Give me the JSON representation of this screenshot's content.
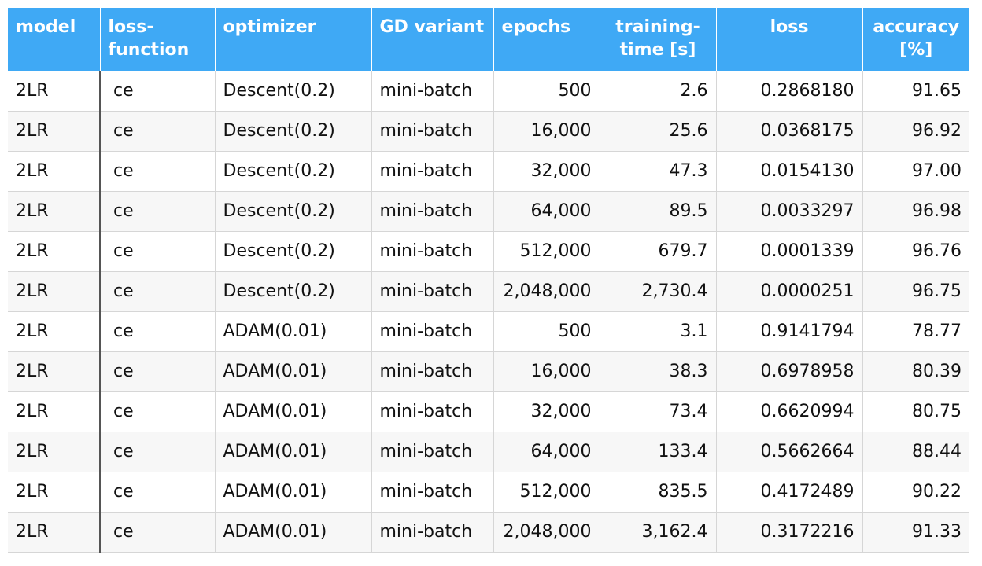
{
  "table": {
    "headers": [
      "model",
      "loss-\nfunction",
      "optimizer",
      "GD variant",
      "epochs",
      "training-\ntime [s]",
      "loss",
      "accuracy\n[%]"
    ],
    "rows": [
      [
        "2LR",
        "ce",
        "Descent(0.2)",
        "mini-batch",
        "500",
        "2.6",
        "0.2868180",
        "91.65"
      ],
      [
        "2LR",
        "ce",
        "Descent(0.2)",
        "mini-batch",
        "16,000",
        "25.6",
        "0.0368175",
        "96.92"
      ],
      [
        "2LR",
        "ce",
        "Descent(0.2)",
        "mini-batch",
        "32,000",
        "47.3",
        "0.0154130",
        "97.00"
      ],
      [
        "2LR",
        "ce",
        "Descent(0.2)",
        "mini-batch",
        "64,000",
        "89.5",
        "0.0033297",
        "96.98"
      ],
      [
        "2LR",
        "ce",
        "Descent(0.2)",
        "mini-batch",
        "512,000",
        "679.7",
        "0.0001339",
        "96.76"
      ],
      [
        "2LR",
        "ce",
        "Descent(0.2)",
        "mini-batch",
        "2,048,000",
        "2,730.4",
        "0.0000251",
        "96.75"
      ],
      [
        "2LR",
        "ce",
        "ADAM(0.01)",
        "mini-batch",
        "500",
        "3.1",
        "0.9141794",
        "78.77"
      ],
      [
        "2LR",
        "ce",
        "ADAM(0.01)",
        "mini-batch",
        "16,000",
        "38.3",
        "0.6978958",
        "80.39"
      ],
      [
        "2LR",
        "ce",
        "ADAM(0.01)",
        "mini-batch",
        "32,000",
        "73.4",
        "0.6620994",
        "80.75"
      ],
      [
        "2LR",
        "ce",
        "ADAM(0.01)",
        "mini-batch",
        "64,000",
        "133.4",
        "0.5662664",
        "88.44"
      ],
      [
        "2LR",
        "ce",
        "ADAM(0.01)",
        "mini-batch",
        "512,000",
        "835.5",
        "0.4172489",
        "90.22"
      ],
      [
        "2LR",
        "ce",
        "ADAM(0.01)",
        "mini-batch",
        "2,048,000",
        "3,162.4",
        "0.3172216",
        "91.33"
      ]
    ]
  },
  "colors": {
    "header_bg": "#3fa9f5",
    "header_text": "#ffffff",
    "row_alt_bg": "#f7f7f7",
    "grid_line": "#d6d6d6"
  }
}
